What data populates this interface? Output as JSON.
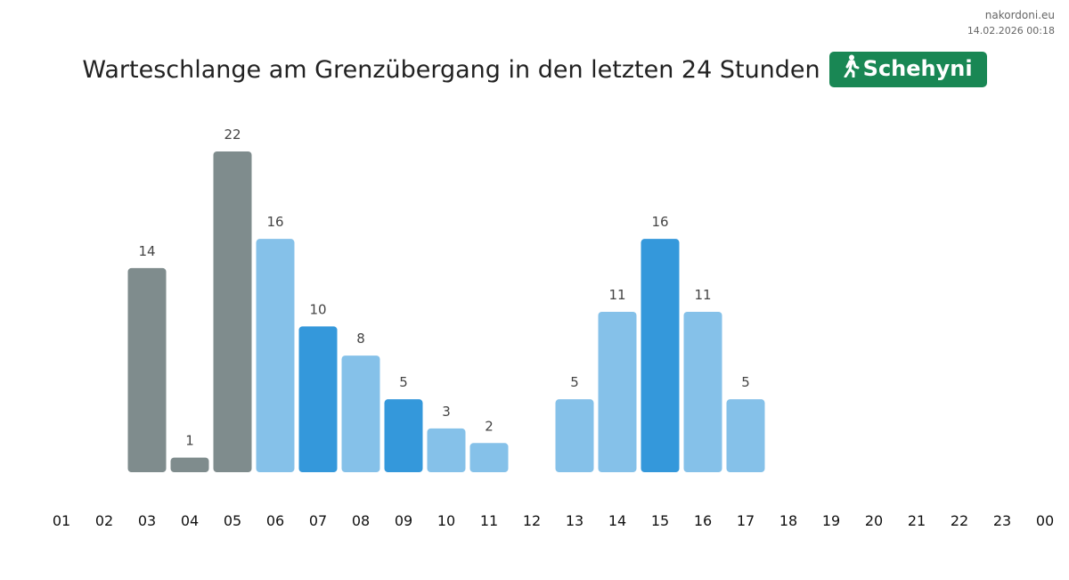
{
  "source": {
    "site": "nakordoni.eu",
    "timestamp": "14.02.2026 00:18"
  },
  "header": {
    "title": "Warteschlange am Grenzübergang in den letzten 24 Stunden",
    "badge_label": "Schehyni",
    "badge_icon": "walking-person-icon",
    "badge_color": "#198754"
  },
  "colors": {
    "gray": "#7f8c8d",
    "light": "#85c1e9",
    "dark": "#3498db"
  },
  "chart_data": {
    "type": "bar",
    "categories": [
      "01",
      "02",
      "03",
      "04",
      "05",
      "06",
      "07",
      "08",
      "09",
      "10",
      "11",
      "12",
      "13",
      "14",
      "15",
      "16",
      "17",
      "18",
      "19",
      "20",
      "21",
      "22",
      "23",
      "00"
    ],
    "values": [
      null,
      null,
      14,
      1,
      22,
      16,
      10,
      8,
      5,
      3,
      2,
      null,
      5,
      11,
      16,
      11,
      5,
      null,
      null,
      null,
      null,
      null,
      null,
      null
    ],
    "bar_colors": [
      null,
      null,
      "gray",
      "gray",
      "gray",
      "light",
      "dark",
      "light",
      "dark",
      "light",
      "light",
      null,
      "light",
      "light",
      "dark",
      "light",
      "light",
      null,
      null,
      null,
      null,
      null,
      null,
      null
    ],
    "ylim": [
      0,
      22
    ],
    "grid": false,
    "title": "Warteschlange am Grenzübergang in den letzten 24 Stunden"
  }
}
